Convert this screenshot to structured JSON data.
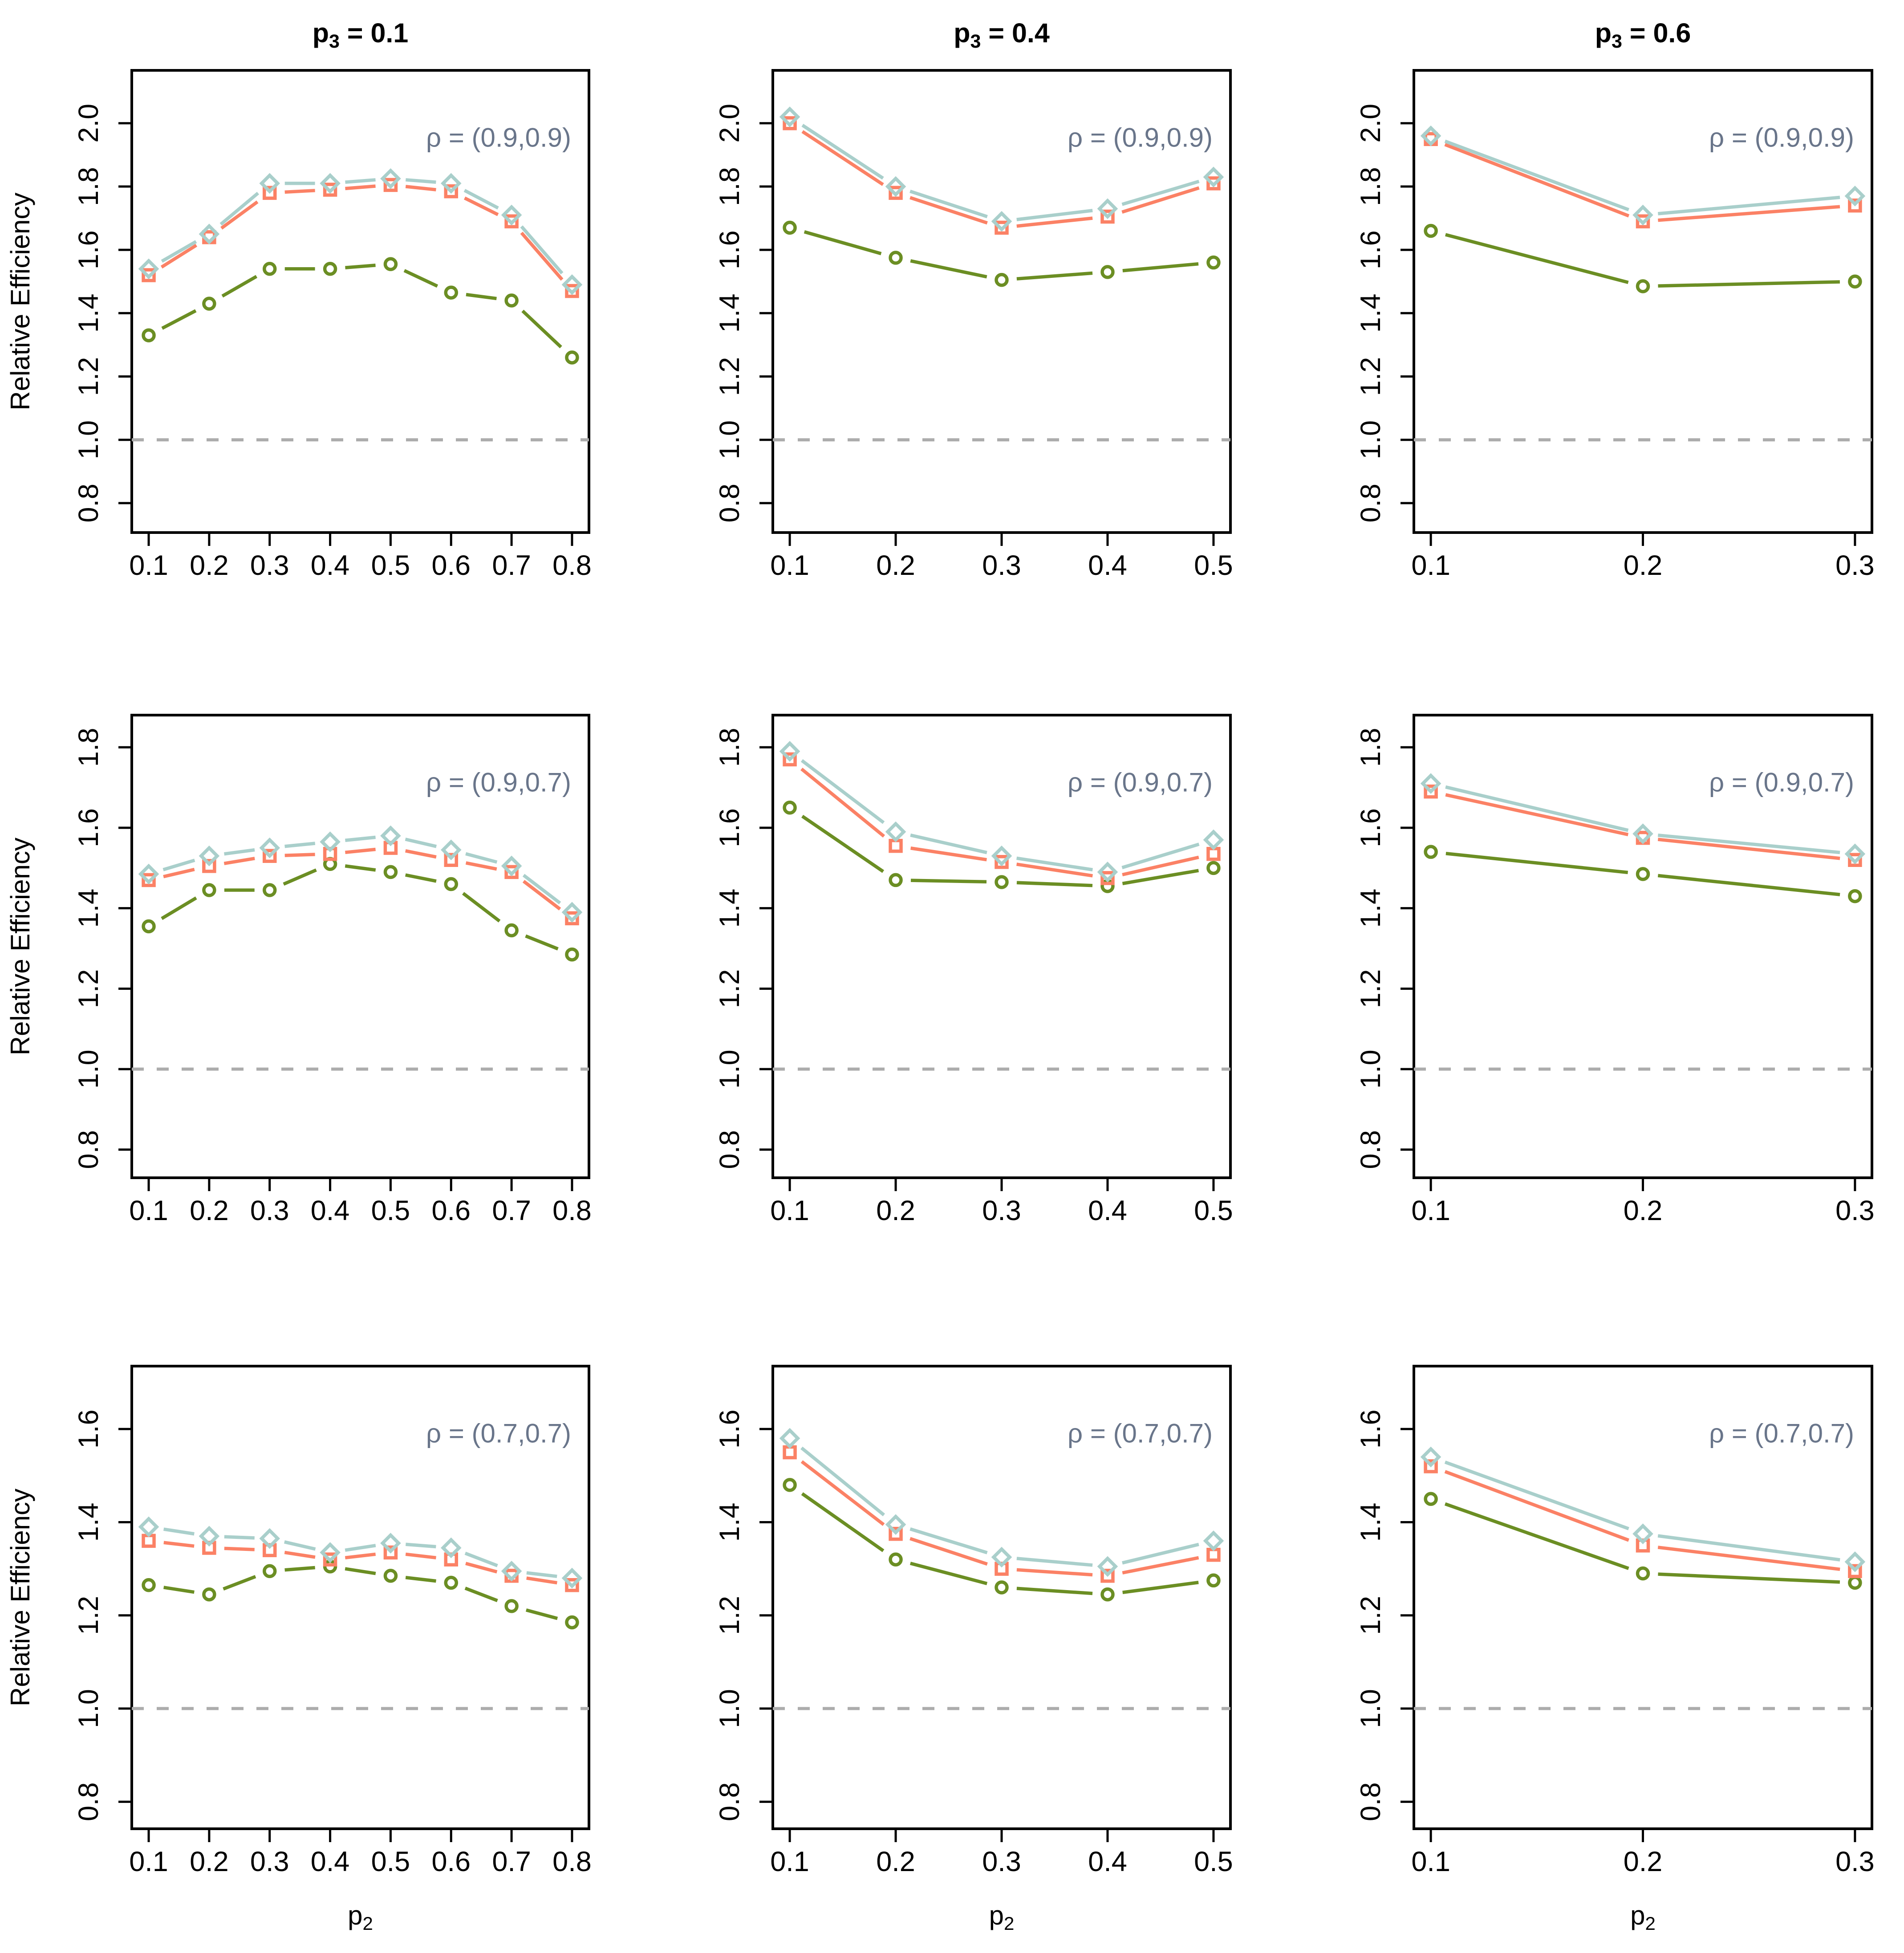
{
  "figure": {
    "background": "#ffffff",
    "ylabel": "Relative Efficiency",
    "xlabel": {
      "base": "p",
      "sub": "2"
    },
    "col_titles": [
      {
        "base": "p",
        "sub": "3",
        "rest": " = 0.1"
      },
      {
        "base": "p",
        "sub": "3",
        "rest": " = 0.4"
      },
      {
        "base": "p",
        "sub": "3",
        "rest": " = 0.6"
      }
    ],
    "row_annotations": [
      "ρ = (0.9,0.9)",
      "ρ = (0.9,0.7)",
      "ρ = (0.7,0.7)"
    ],
    "colors": {
      "diamond_series": "#A9CFCB",
      "square_series": "#FB8165",
      "circle_series": "#6B8E23",
      "reference_line": "#ACACAC",
      "annotation_text": "#69758A",
      "axis": "#000000"
    }
  },
  "chart_data": [
    {
      "type": "line",
      "row": 0,
      "col": 0,
      "title": "p3 = 0.1",
      "annotation": "ρ = (0.9,0.9)",
      "xlabel": "p2",
      "ylabel": "Relative Efficiency",
      "x": [
        0.1,
        0.2,
        0.3,
        0.4,
        0.5,
        0.6,
        0.7,
        0.8
      ],
      "x_tick_labels": [
        "0.1",
        "0.2",
        "0.3",
        "0.4",
        "0.5",
        "0.6",
        "0.7",
        "0.8"
      ],
      "y_tick_labels": [
        "0.8",
        "1.0",
        "1.2",
        "1.4",
        "1.6",
        "1.8",
        "2.0"
      ],
      "ylim": [
        0.707,
        2.167
      ],
      "grid": false,
      "legend_position": "top-right-annotation",
      "reference_y": 1.0,
      "series": [
        {
          "name": "circle",
          "marker": "circle",
          "color": "#6B8E23",
          "values": [
            1.33,
            1.43,
            1.54,
            1.54,
            1.555,
            1.465,
            1.44,
            1.26
          ]
        },
        {
          "name": "square",
          "marker": "square",
          "color": "#FB8165",
          "values": [
            1.52,
            1.64,
            1.78,
            1.79,
            1.805,
            1.785,
            1.69,
            1.47
          ]
        },
        {
          "name": "diamond",
          "marker": "diamond",
          "color": "#A9CFCB",
          "values": [
            1.54,
            1.65,
            1.81,
            1.81,
            1.825,
            1.81,
            1.71,
            1.49
          ]
        }
      ]
    },
    {
      "type": "line",
      "row": 0,
      "col": 1,
      "title": "p3 = 0.4",
      "annotation": "ρ = (0.9,0.9)",
      "xlabel": "p2",
      "ylabel": "",
      "x": [
        0.1,
        0.2,
        0.3,
        0.4,
        0.5
      ],
      "x_tick_labels": [
        "0.1",
        "0.2",
        "0.3",
        "0.4",
        "0.5"
      ],
      "y_tick_labels": [
        "0.8",
        "1.0",
        "1.2",
        "1.4",
        "1.6",
        "1.8",
        "2.0"
      ],
      "ylim": [
        0.707,
        2.167
      ],
      "grid": false,
      "legend_position": "top-right-annotation",
      "reference_y": 1.0,
      "series": [
        {
          "name": "circle",
          "marker": "circle",
          "color": "#6B8E23",
          "values": [
            1.67,
            1.575,
            1.505,
            1.53,
            1.56
          ]
        },
        {
          "name": "square",
          "marker": "square",
          "color": "#FB8165",
          "values": [
            2.0,
            1.78,
            1.67,
            1.705,
            1.81
          ]
        },
        {
          "name": "diamond",
          "marker": "diamond",
          "color": "#A9CFCB",
          "values": [
            2.02,
            1.8,
            1.69,
            1.73,
            1.83
          ]
        }
      ]
    },
    {
      "type": "line",
      "row": 0,
      "col": 2,
      "title": "p3 = 0.6",
      "annotation": "ρ = (0.9,0.9)",
      "xlabel": "p2",
      "ylabel": "",
      "x": [
        0.1,
        0.2,
        0.3
      ],
      "x_tick_labels": [
        "0.1",
        "0.2",
        "0.3"
      ],
      "y_tick_labels": [
        "0.8",
        "1.0",
        "1.2",
        "1.4",
        "1.6",
        "1.8",
        "2.0"
      ],
      "ylim": [
        0.707,
        2.167
      ],
      "grid": false,
      "legend_position": "top-right-annotation",
      "reference_y": 1.0,
      "series": [
        {
          "name": "circle",
          "marker": "circle",
          "color": "#6B8E23",
          "values": [
            1.66,
            1.485,
            1.5
          ]
        },
        {
          "name": "square",
          "marker": "square",
          "color": "#FB8165",
          "values": [
            1.95,
            1.69,
            1.74
          ]
        },
        {
          "name": "diamond",
          "marker": "diamond",
          "color": "#A9CFCB",
          "values": [
            1.96,
            1.71,
            1.77
          ]
        }
      ]
    },
    {
      "type": "line",
      "row": 1,
      "col": 0,
      "title": "",
      "annotation": "ρ = (0.9,0.7)",
      "xlabel": "p2",
      "ylabel": "Relative Efficiency",
      "x": [
        0.1,
        0.2,
        0.3,
        0.4,
        0.5,
        0.6,
        0.7,
        0.8
      ],
      "x_tick_labels": [
        "0.1",
        "0.2",
        "0.3",
        "0.4",
        "0.5",
        "0.6",
        "0.7",
        "0.8"
      ],
      "y_tick_labels": [
        "0.8",
        "1.0",
        "1.2",
        "1.4",
        "1.6",
        "1.8"
      ],
      "ylim": [
        0.73,
        1.88
      ],
      "grid": false,
      "legend_position": "top-right-annotation",
      "reference_y": 1.0,
      "series": [
        {
          "name": "circle",
          "marker": "circle",
          "color": "#6B8E23",
          "values": [
            1.355,
            1.445,
            1.445,
            1.51,
            1.49,
            1.46,
            1.345,
            1.285
          ]
        },
        {
          "name": "square",
          "marker": "square",
          "color": "#FB8165",
          "values": [
            1.47,
            1.505,
            1.53,
            1.535,
            1.55,
            1.52,
            1.49,
            1.375
          ]
        },
        {
          "name": "diamond",
          "marker": "diamond",
          "color": "#A9CFCB",
          "values": [
            1.485,
            1.53,
            1.55,
            1.565,
            1.58,
            1.545,
            1.505,
            1.39
          ]
        }
      ]
    },
    {
      "type": "line",
      "row": 1,
      "col": 1,
      "title": "",
      "annotation": "ρ = (0.9,0.7)",
      "xlabel": "p2",
      "ylabel": "",
      "x": [
        0.1,
        0.2,
        0.3,
        0.4,
        0.5
      ],
      "x_tick_labels": [
        "0.1",
        "0.2",
        "0.3",
        "0.4",
        "0.5"
      ],
      "y_tick_labels": [
        "0.8",
        "1.0",
        "1.2",
        "1.4",
        "1.6",
        "1.8"
      ],
      "ylim": [
        0.73,
        1.88
      ],
      "grid": false,
      "legend_position": "top-right-annotation",
      "reference_y": 1.0,
      "series": [
        {
          "name": "circle",
          "marker": "circle",
          "color": "#6B8E23",
          "values": [
            1.65,
            1.47,
            1.465,
            1.455,
            1.5
          ]
        },
        {
          "name": "square",
          "marker": "square",
          "color": "#FB8165",
          "values": [
            1.77,
            1.555,
            1.515,
            1.475,
            1.535
          ]
        },
        {
          "name": "diamond",
          "marker": "diamond",
          "color": "#A9CFCB",
          "values": [
            1.79,
            1.59,
            1.53,
            1.49,
            1.57
          ]
        }
      ]
    },
    {
      "type": "line",
      "row": 1,
      "col": 2,
      "title": "",
      "annotation": "ρ = (0.9,0.7)",
      "xlabel": "p2",
      "ylabel": "",
      "x": [
        0.1,
        0.2,
        0.3
      ],
      "x_tick_labels": [
        "0.1",
        "0.2",
        "0.3"
      ],
      "y_tick_labels": [
        "0.8",
        "1.0",
        "1.2",
        "1.4",
        "1.6",
        "1.8"
      ],
      "ylim": [
        0.73,
        1.88
      ],
      "grid": false,
      "legend_position": "top-right-annotation",
      "reference_y": 1.0,
      "series": [
        {
          "name": "circle",
          "marker": "circle",
          "color": "#6B8E23",
          "values": [
            1.54,
            1.485,
            1.43
          ]
        },
        {
          "name": "square",
          "marker": "square",
          "color": "#FB8165",
          "values": [
            1.69,
            1.575,
            1.52
          ]
        },
        {
          "name": "diamond",
          "marker": "diamond",
          "color": "#A9CFCB",
          "values": [
            1.71,
            1.585,
            1.535
          ]
        }
      ]
    },
    {
      "type": "line",
      "row": 2,
      "col": 0,
      "title": "",
      "annotation": "ρ = (0.7,0.7)",
      "xlabel": "p2",
      "ylabel": "Relative Efficiency",
      "x": [
        0.1,
        0.2,
        0.3,
        0.4,
        0.5,
        0.6,
        0.7,
        0.8
      ],
      "x_tick_labels": [
        "0.1",
        "0.2",
        "0.3",
        "0.4",
        "0.5",
        "0.6",
        "0.7",
        "0.8"
      ],
      "y_tick_labels": [
        "0.8",
        "1.0",
        "1.2",
        "1.4",
        "1.6"
      ],
      "ylim": [
        0.742,
        1.735
      ],
      "grid": false,
      "legend_position": "top-right-annotation",
      "reference_y": 1.0,
      "series": [
        {
          "name": "circle",
          "marker": "circle",
          "color": "#6B8E23",
          "values": [
            1.265,
            1.245,
            1.295,
            1.305,
            1.285,
            1.27,
            1.22,
            1.185
          ]
        },
        {
          "name": "square",
          "marker": "square",
          "color": "#FB8165",
          "values": [
            1.36,
            1.345,
            1.34,
            1.32,
            1.335,
            1.32,
            1.285,
            1.265
          ]
        },
        {
          "name": "diamond",
          "marker": "diamond",
          "color": "#A9CFCB",
          "values": [
            1.39,
            1.37,
            1.365,
            1.335,
            1.355,
            1.345,
            1.295,
            1.28
          ]
        }
      ]
    },
    {
      "type": "line",
      "row": 2,
      "col": 1,
      "title": "",
      "annotation": "ρ = (0.7,0.7)",
      "xlabel": "p2",
      "ylabel": "",
      "x": [
        0.1,
        0.2,
        0.3,
        0.4,
        0.5
      ],
      "x_tick_labels": [
        "0.1",
        "0.2",
        "0.3",
        "0.4",
        "0.5"
      ],
      "y_tick_labels": [
        "0.8",
        "1.0",
        "1.2",
        "1.4",
        "1.6"
      ],
      "ylim": [
        0.742,
        1.735
      ],
      "grid": false,
      "legend_position": "top-right-annotation",
      "reference_y": 1.0,
      "series": [
        {
          "name": "circle",
          "marker": "circle",
          "color": "#6B8E23",
          "values": [
            1.48,
            1.32,
            1.26,
            1.245,
            1.275
          ]
        },
        {
          "name": "square",
          "marker": "square",
          "color": "#FB8165",
          "values": [
            1.55,
            1.375,
            1.3,
            1.285,
            1.33
          ]
        },
        {
          "name": "diamond",
          "marker": "diamond",
          "color": "#A9CFCB",
          "values": [
            1.58,
            1.395,
            1.325,
            1.305,
            1.36
          ]
        }
      ]
    },
    {
      "type": "line",
      "row": 2,
      "col": 2,
      "title": "",
      "annotation": "ρ = (0.7,0.7)",
      "xlabel": "p2",
      "ylabel": "",
      "x": [
        0.1,
        0.2,
        0.3
      ],
      "x_tick_labels": [
        "0.1",
        "0.2",
        "0.3"
      ],
      "y_tick_labels": [
        "0.8",
        "1.0",
        "1.2",
        "1.4",
        "1.6"
      ],
      "ylim": [
        0.742,
        1.735
      ],
      "grid": false,
      "legend_position": "top-right-annotation",
      "reference_y": 1.0,
      "series": [
        {
          "name": "circle",
          "marker": "circle",
          "color": "#6B8E23",
          "values": [
            1.45,
            1.29,
            1.27
          ]
        },
        {
          "name": "square",
          "marker": "square",
          "color": "#FB8165",
          "values": [
            1.52,
            1.35,
            1.295
          ]
        },
        {
          "name": "diamond",
          "marker": "diamond",
          "color": "#A9CFCB",
          "values": [
            1.54,
            1.375,
            1.315
          ]
        }
      ]
    }
  ]
}
